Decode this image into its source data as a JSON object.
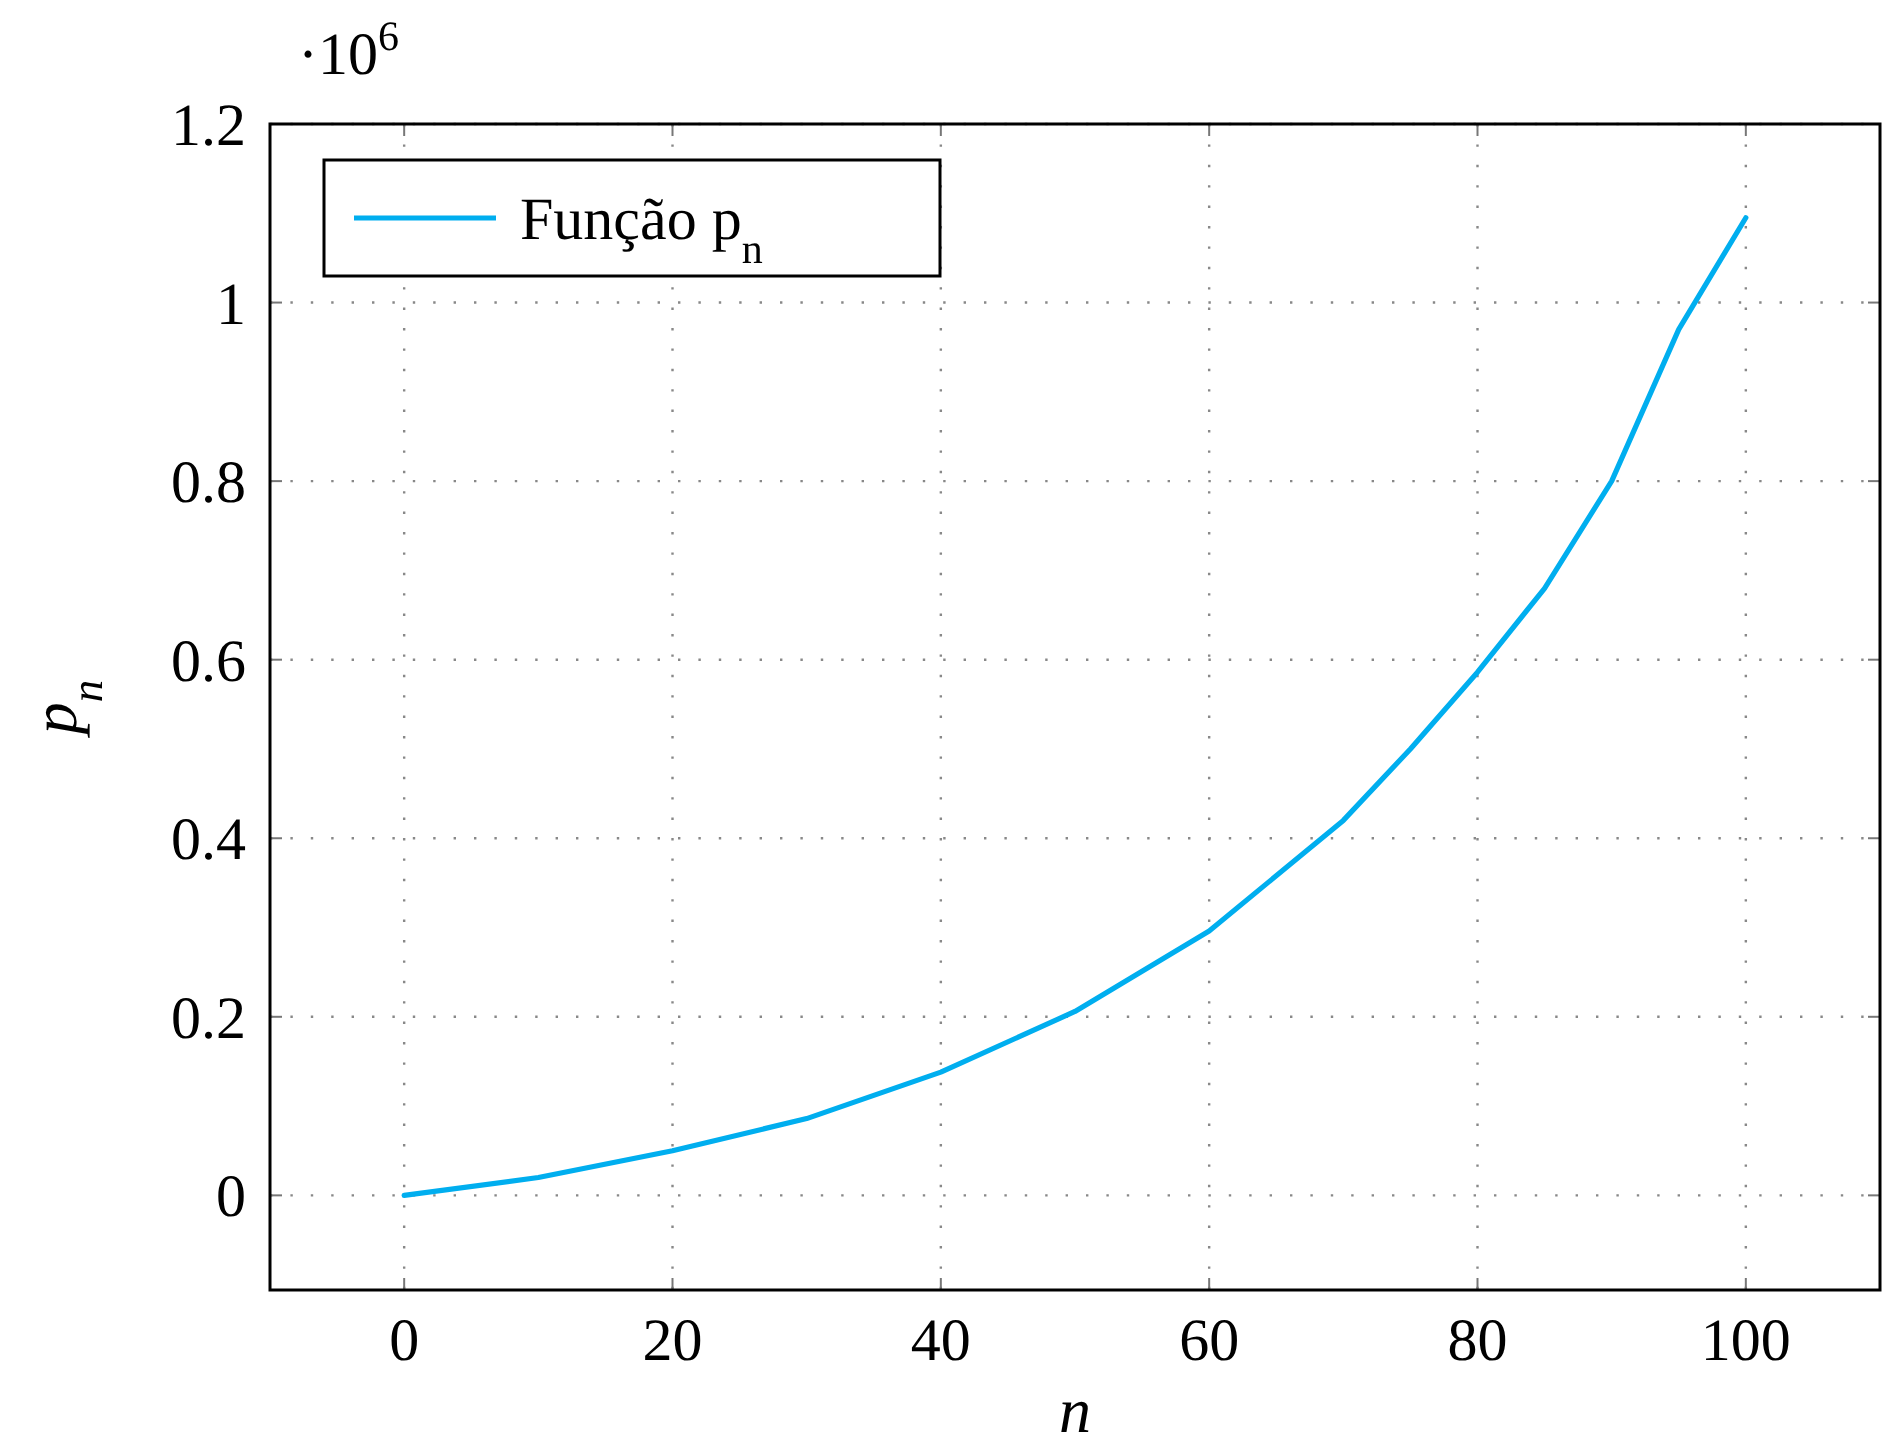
{
  "chart_data": {
    "type": "line",
    "xlabel": "n",
    "ylabel": "p$_{n}$",
    "annotations": [
      "·10$^{6}$"
    ],
    "x": [
      0,
      10,
      20,
      30,
      40,
      50,
      60,
      70,
      75,
      80,
      85,
      90,
      95,
      100
    ],
    "series": [
      {
        "name": "Função p$_{n}$",
        "color": "#00aeef",
        "values": [
          0,
          0.02,
          0.05,
          0.086,
          0.138,
          0.206,
          0.296,
          0.42,
          0.5,
          0.586,
          0.68,
          0.8,
          0.97,
          1.095
        ]
      }
    ],
    "xlim": [
      -10,
      110
    ],
    "xticks": [
      0,
      20,
      40,
      60,
      80,
      100
    ],
    "ylim": [
      -0.106,
      1.2
    ],
    "yticks": [
      0,
      0.2,
      0.4,
      0.6,
      0.8,
      1,
      1.2
    ],
    "grid": true,
    "legend": "top left",
    "marker": "none",
    "line_style": "solid"
  }
}
